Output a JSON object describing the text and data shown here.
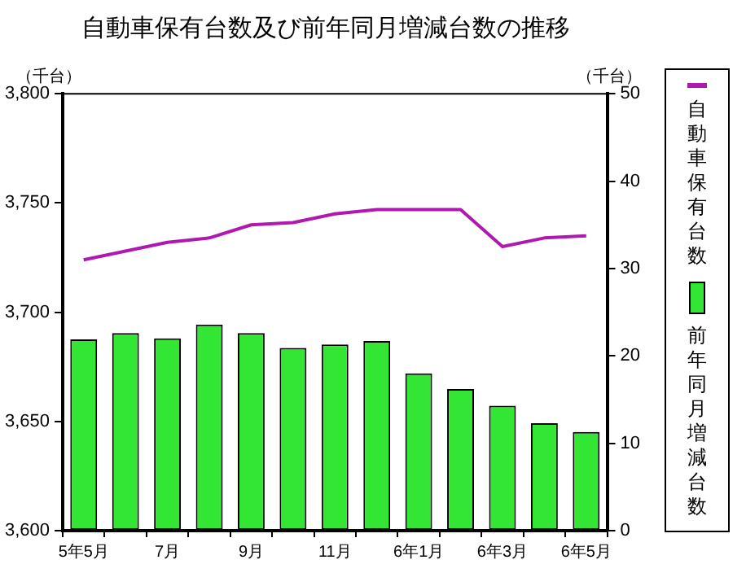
{
  "chart_data": {
    "type": "bar",
    "title": "自動車保有台数及び前年同月増減台数の推移",
    "ylabel": "（千台）",
    "y2label": "（千台）",
    "categories": [
      "5年5月",
      null,
      "7月",
      null,
      "9月",
      null,
      "11月",
      null,
      "6年1月",
      null,
      "6年3月",
      null,
      "6年5月"
    ],
    "series": [
      {
        "name": "自動車保有台数",
        "type": "line",
        "color": "#b019b0",
        "values": [
          3724,
          3728,
          3732,
          3734,
          3740,
          3741,
          3745,
          3747,
          3747,
          3747,
          3730,
          3734,
          3735
        ]
      },
      {
        "name": "前年同月増減台数",
        "axis": "y2",
        "color": "#33e633",
        "values": [
          21.9,
          22.6,
          22.0,
          23.6,
          22.6,
          20.9,
          21.3,
          21.7,
          18.0,
          16.2,
          14.3,
          12.3,
          11.3
        ]
      }
    ],
    "ylim": [
      3600,
      3800
    ],
    "yticks": [
      {
        "value": 3600,
        "label": "3,600"
      },
      {
        "value": 3650,
        "label": "3,650"
      },
      {
        "value": 3700,
        "label": "3,700"
      },
      {
        "value": 3750,
        "label": "3,750"
      },
      {
        "value": 3800,
        "label": "3,800"
      }
    ],
    "y2lim": [
      0,
      50
    ],
    "y2ticks": [
      0,
      10,
      20,
      30,
      40,
      50
    ],
    "grid": false,
    "legend": "right",
    "marker": "none"
  }
}
